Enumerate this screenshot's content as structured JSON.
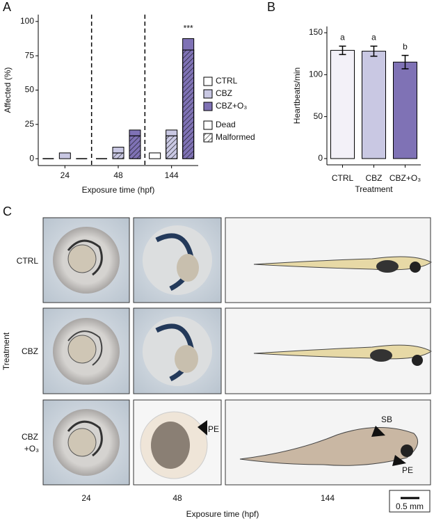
{
  "panel_labels": [
    "A",
    "B",
    "C"
  ],
  "chart_data": [
    {
      "type": "stacked_bar",
      "categories": [
        "24",
        "48",
        "144"
      ],
      "x_label": "Exposure time (hpf)",
      "y_label": "Affected (%)",
      "ylim": [
        -5,
        105
      ],
      "yticks": [
        0,
        25,
        50,
        75,
        100
      ],
      "annotation": "***",
      "stack_names": [
        "Dead",
        "Malformed"
      ],
      "series": [
        {
          "name": "CTRL",
          "color": "#ffffff",
          "dead": [
            0,
            0,
            4.2
          ],
          "malformed": [
            0,
            0,
            0
          ]
        },
        {
          "name": "CBZ",
          "color": "#c9c8e3",
          "dead": [
            4.2,
            4.2,
            4.2
          ],
          "malformed": [
            0,
            4.2,
            16.7
          ]
        },
        {
          "name": "CBZ+O₃",
          "color": "#7f72b5",
          "dead": [
            0,
            4.2,
            8.3
          ],
          "malformed": [
            0,
            16.7,
            79.2
          ]
        }
      ]
    },
    {
      "type": "bar",
      "categories": [
        "CTRL",
        "CBZ",
        "CBZ+O₃"
      ],
      "values": [
        129,
        128,
        115
      ],
      "errors": [
        5,
        6,
        8
      ],
      "colors": [
        "#f3f1f8",
        "#c9c8e3",
        "#7f72b5"
      ],
      "significance": [
        "a",
        "a",
        "b"
      ],
      "x_label": "Treatment",
      "y_label": "Heartbeats/min",
      "ylim": [
        -7.5,
        157.5
      ],
      "yticks": [
        0,
        50,
        100,
        150
      ]
    }
  ],
  "image_grid": {
    "row_labels": [
      [
        "CTRL"
      ],
      [
        "CBZ"
      ],
      [
        "CBZ",
        "+O₃"
      ]
    ],
    "column_labels": [
      "24",
      "48",
      "144"
    ],
    "y_label": "Treatment",
    "x_label": "Exposure time (hpf)",
    "annotations": [
      "PE",
      "SB",
      "PE"
    ],
    "scale_bar": "0.5 mm"
  }
}
